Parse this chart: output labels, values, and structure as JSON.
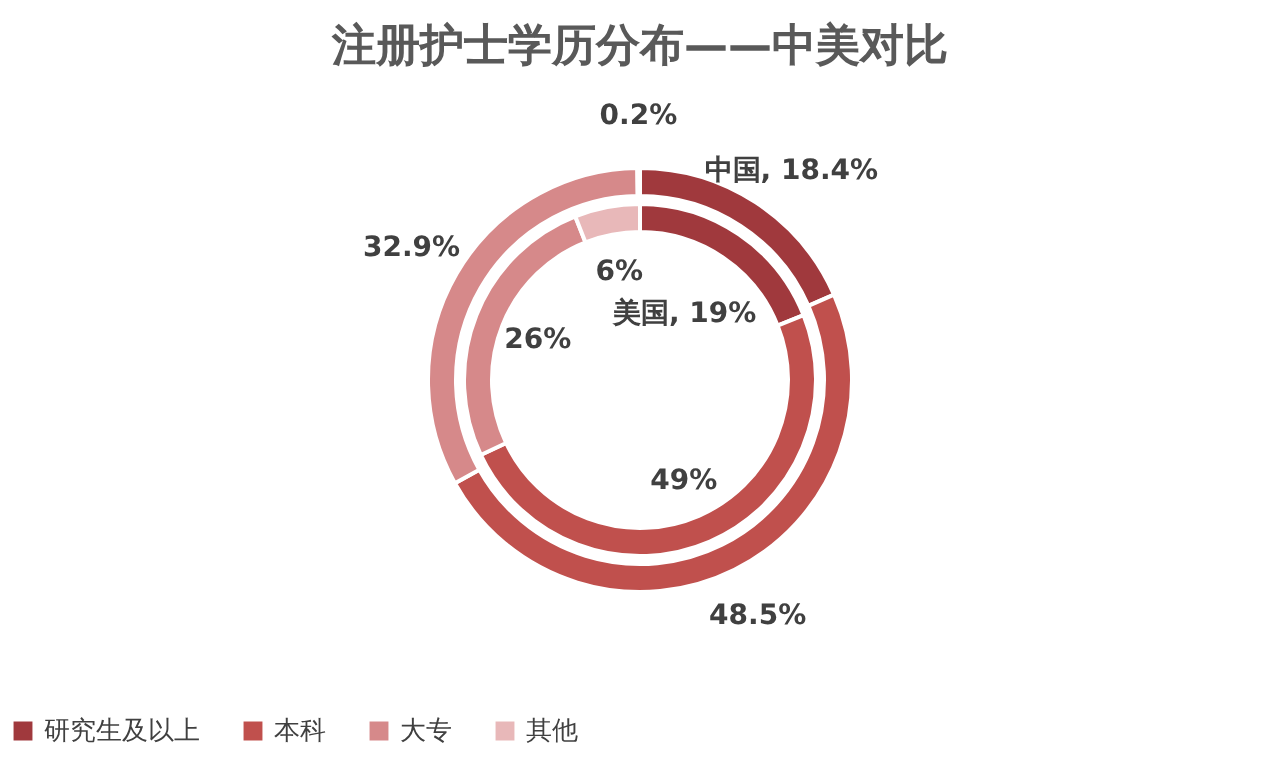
{
  "chart_data": {
    "type": "donut",
    "title": "注册护士学历分布——中美对比",
    "categories": [
      "研究生及以上",
      "本科",
      "大专",
      "其他"
    ],
    "colors": [
      "#a0393d",
      "#c0504d",
      "#d6898a",
      "#e8b8b9"
    ],
    "series": [
      {
        "name": "中国",
        "values": [
          18.4,
          48.5,
          32.9,
          0.2
        ],
        "value_labels": [
          ", 18.4%",
          "48.5%",
          "32.9%",
          "0.2%"
        ]
      },
      {
        "name": "美国",
        "values": [
          19,
          49,
          26,
          6
        ],
        "value_labels": [
          ", 19%",
          "49%",
          "26%",
          "6%"
        ]
      }
    ],
    "legend": "bottom"
  }
}
